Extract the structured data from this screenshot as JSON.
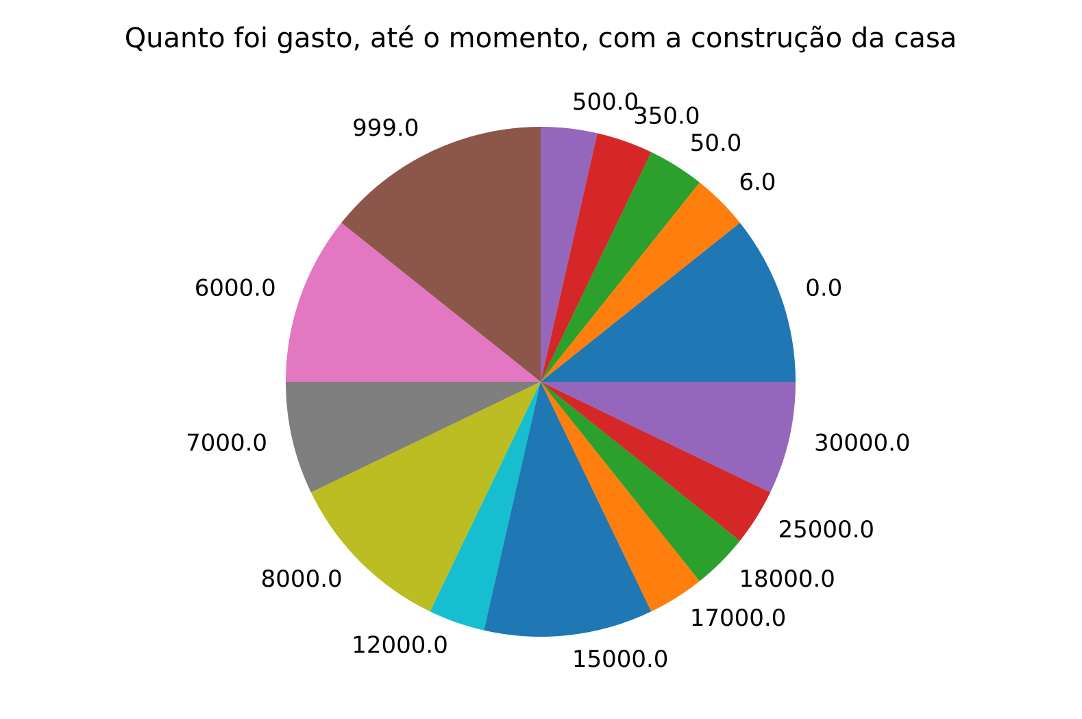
{
  "chart_data": {
    "type": "pie",
    "title": "Quanto foi gasto, até o momento, com a construção da casa",
    "categories": [
      "0.0",
      "6.0",
      "50.0",
      "350.0",
      "500.0",
      "999.0",
      "6000.0",
      "7000.0",
      "8000.0",
      "12000.0",
      "15000.0",
      "17000.0",
      "18000.0",
      "25000.0",
      "30000.0"
    ],
    "values": [
      3,
      1,
      1,
      1,
      1,
      4,
      3,
      2,
      3,
      1,
      3,
      1,
      1,
      1,
      2
    ],
    "colors": [
      "#1f77b4",
      "#ff7f0e",
      "#2ca02c",
      "#d62728",
      "#9467bd",
      "#8c564b",
      "#e377c2",
      "#7f7f7f",
      "#bcbd22",
      "#17becf",
      "#1f77b4",
      "#ff7f0e",
      "#2ca02c",
      "#d62728",
      "#9467bd"
    ],
    "start_angle_deg": 0,
    "direction": "counterclockwise"
  }
}
